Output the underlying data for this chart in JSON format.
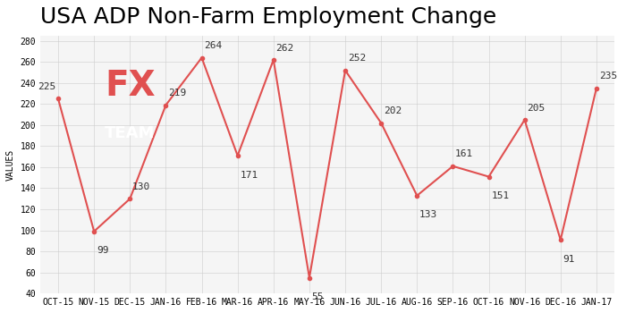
{
  "title": "USA ADP Non-Farm Employment Change",
  "xlabel": "",
  "ylabel": "VALUES",
  "categories": [
    "OCT-15",
    "NOV-15",
    "DEC-15",
    "JAN-16",
    "FEB-16",
    "MAR-16",
    "APR-16",
    "MAY-16",
    "JUN-16",
    "JUL-16",
    "AUG-16",
    "SEP-16",
    "OCT-16",
    "NOV-16",
    "DEC-16",
    "JAN-17"
  ],
  "values": [
    225,
    99,
    130,
    219,
    264,
    171,
    262,
    55,
    252,
    202,
    133,
    161,
    151,
    205,
    91,
    235
  ],
  "line_color": "#e05050",
  "marker_color": "#e05050",
  "ylim": [
    40,
    285
  ],
  "yticks": [
    40,
    60,
    80,
    100,
    120,
    140,
    160,
    180,
    200,
    220,
    240,
    260,
    280
  ],
  "grid_color": "#cccccc",
  "bg_color": "#f5f5f5",
  "title_fontsize": 18,
  "label_fontsize": 8,
  "ylabel_fontsize": 7,
  "watermark_bg": "#6b6b6b",
  "watermark_fx_color": "#e05050",
  "watermark_team_color": "#ffffff"
}
